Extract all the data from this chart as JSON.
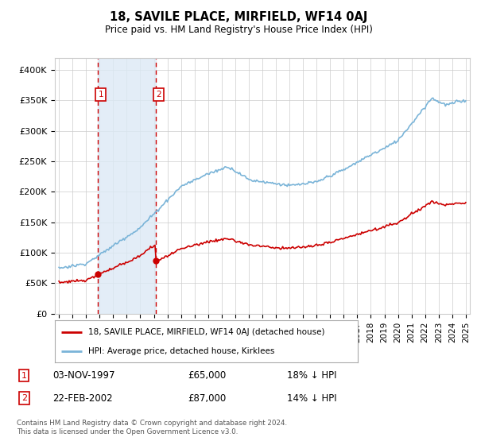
{
  "title": "18, SAVILE PLACE, MIRFIELD, WF14 0AJ",
  "subtitle": "Price paid vs. HM Land Registry's House Price Index (HPI)",
  "legend_line1": "18, SAVILE PLACE, MIRFIELD, WF14 0AJ (detached house)",
  "legend_line2": "HPI: Average price, detached house, Kirklees",
  "label1_date": "03-NOV-1997",
  "label1_price": "£65,000",
  "label1_hpi": "18% ↓ HPI",
  "label2_date": "22-FEB-2002",
  "label2_price": "£87,000",
  "label2_hpi": "14% ↓ HPI",
  "footer": "Contains HM Land Registry data © Crown copyright and database right 2024.\nThis data is licensed under the Open Government Licence v3.0.",
  "hpi_color": "#7ab4d8",
  "price_color": "#cc0000",
  "sale1_x": 1997.84,
  "sale1_y": 65000,
  "sale2_x": 2002.13,
  "sale2_y": 87000,
  "ylim": [
    0,
    420000
  ],
  "yticks": [
    0,
    50000,
    100000,
    150000,
    200000,
    250000,
    300000,
    350000,
    400000
  ],
  "ytick_labels": [
    "£0",
    "£50K",
    "£100K",
    "£150K",
    "£200K",
    "£250K",
    "£300K",
    "£350K",
    "£400K"
  ],
  "xlim_start": 1994.7,
  "xlim_end": 2025.3,
  "background_color": "#ffffff",
  "grid_color": "#cccccc",
  "shade_color": "#dce9f5"
}
